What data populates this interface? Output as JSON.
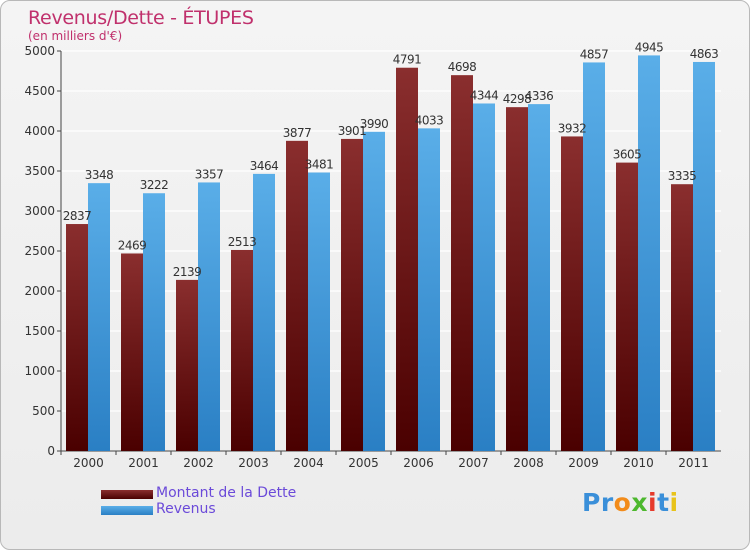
{
  "chart": {
    "title": "Revenus/Dette - ÉTUPES",
    "subtitle": "(en milliers d'€)"
  },
  "legend": {
    "debt_label": "Montant de la Dette",
    "revenue_label": "Revenus"
  },
  "logo": {
    "text": "Proxiti",
    "letters": [
      "P",
      "r",
      "o",
      "x",
      "i",
      "t",
      "i"
    ],
    "letter_colors": [
      "#3a8fd9",
      "#3a8fd9",
      "#f28c1b",
      "#4db82e",
      "#e63a2b",
      "#3a8fd9",
      "#e8c31a"
    ]
  },
  "colors": {
    "debt_top": "#8a2e2e",
    "debt_bottom": "#4a0000",
    "revenue_top": "#5aaee8",
    "revenue_bottom": "#2a7fc4",
    "title": "#c0306c",
    "legend_text": "#6b4ad9"
  },
  "chart_data": {
    "type": "bar",
    "title": "Revenus/Dette - ÉTUPES",
    "subtitle": "(en milliers d'€)",
    "categories": [
      "2000",
      "2001",
      "2002",
      "2003",
      "2004",
      "2005",
      "2006",
      "2007",
      "2008",
      "2009",
      "2010",
      "2011"
    ],
    "series": [
      {
        "name": "Montant de la Dette",
        "values": [
          2837,
          2469,
          2139,
          2513,
          3877,
          3901,
          4791,
          4698,
          4298,
          3932,
          3605,
          3335
        ]
      },
      {
        "name": "Revenus",
        "values": [
          3348,
          3222,
          3357,
          3464,
          3481,
          3990,
          4033,
          4344,
          4336,
          4857,
          4945,
          4863
        ]
      }
    ],
    "ylim": [
      0,
      5000
    ],
    "yticks": [
      0,
      500,
      1000,
      1500,
      2000,
      2500,
      3000,
      3500,
      4000,
      4500,
      5000
    ],
    "grid": true,
    "legend_position": "bottom-left"
  }
}
